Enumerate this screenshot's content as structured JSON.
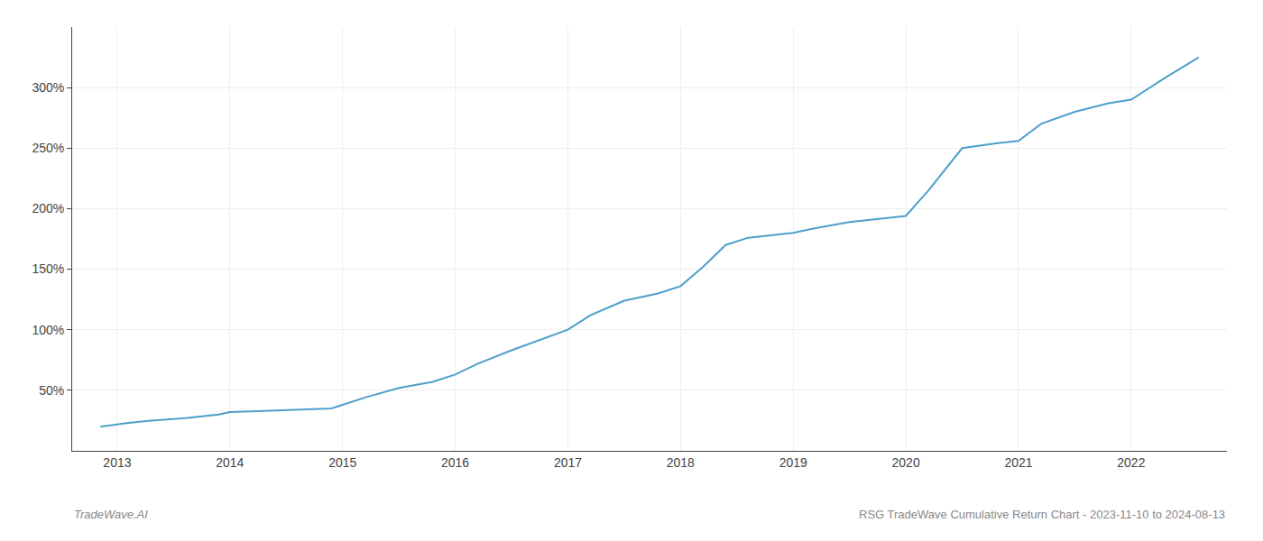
{
  "chart_data": {
    "type": "line",
    "title": "RSG TradeWave Cumulative Return Chart - 2023-11-10 to 2024-08-13",
    "annotations": [
      "TradeWave.AI"
    ],
    "color": "#4d9fcc",
    "x": [
      2012.85,
      2013.0,
      2013.1,
      2013.3,
      2013.6,
      2013.9,
      2014.0,
      2014.3,
      2014.6,
      2014.9,
      2015.0,
      2015.2,
      2015.5,
      2015.8,
      2016.0,
      2016.2,
      2016.5,
      2016.8,
      2017.0,
      2017.2,
      2017.5,
      2017.8,
      2018.0,
      2018.2,
      2018.4,
      2018.6,
      2018.8,
      2019.0,
      2019.2,
      2019.5,
      2019.8,
      2020.0,
      2020.2,
      2020.5,
      2020.8,
      2021.0,
      2021.2,
      2021.5,
      2021.8,
      2022.0,
      2022.3,
      2022.6
    ],
    "values": [
      20,
      22,
      23,
      25,
      27,
      30,
      32,
      33,
      34,
      35,
      38,
      44,
      52,
      57,
      63,
      72,
      83,
      93,
      100,
      112,
      124,
      130,
      136,
      152,
      170,
      176,
      178,
      180,
      184,
      189,
      192,
      194,
      215,
      250,
      254,
      256,
      270,
      280,
      287,
      290,
      308,
      325
    ],
    "xlim": [
      2012.6,
      2022.85
    ],
    "xticks": [
      2013,
      2014,
      2015,
      2016,
      2017,
      2018,
      2019,
      2020,
      2021,
      2022
    ],
    "ylim": [
      0,
      350
    ],
    "yticks": [
      {
        "value": 50,
        "label": "50%"
      },
      {
        "value": 100,
        "label": "100%"
      },
      {
        "value": 150,
        "label": "150%"
      },
      {
        "value": 200,
        "label": "200%"
      },
      {
        "value": 250,
        "label": "250%"
      },
      {
        "value": 300,
        "label": "300%"
      }
    ],
    "grid": true
  }
}
